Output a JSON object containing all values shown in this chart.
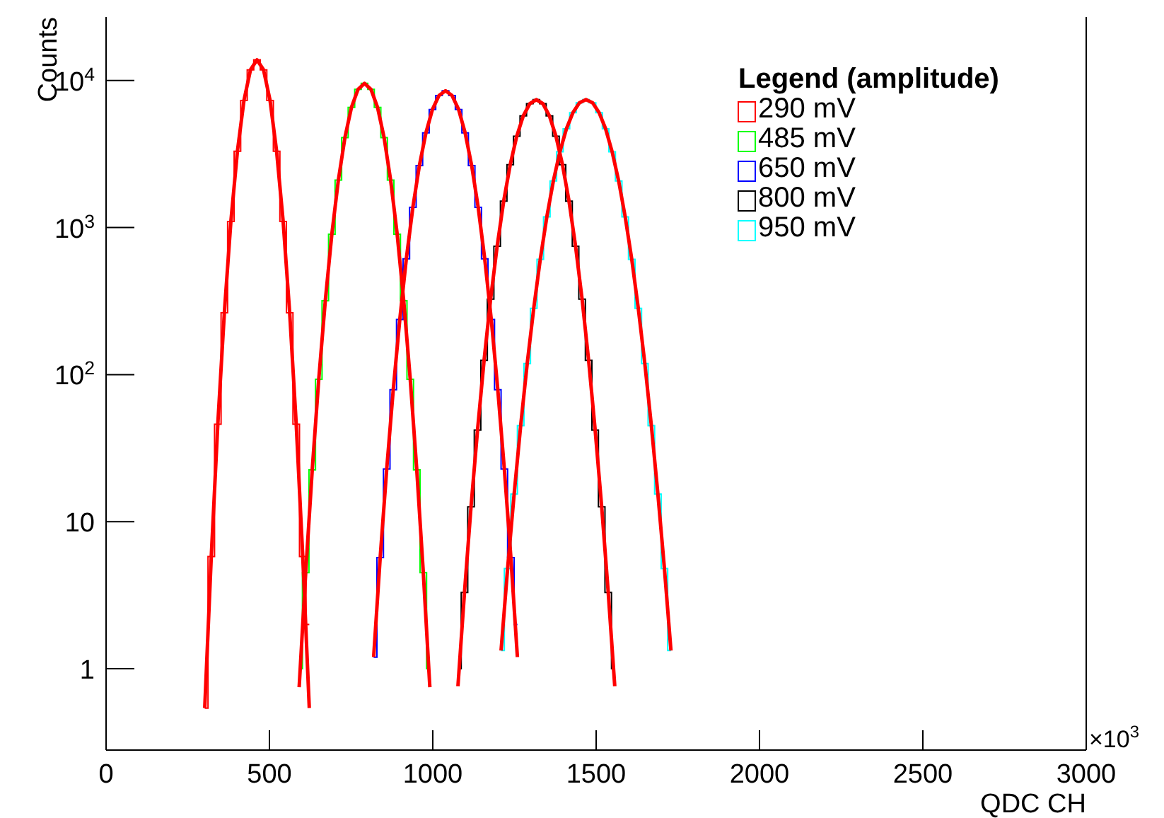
{
  "chart_data": {
    "type": "step",
    "xlabel": "QDC CH",
    "ylabel": "Counts",
    "legend_title": "Legend (amplitude)",
    "legend": "top right",
    "log": "y",
    "xlim": [
      0,
      3000
    ],
    "xticks": [
      0,
      500,
      1000,
      1500,
      2000,
      2500,
      3000
    ],
    "ylim": [
      0.28,
      27000
    ],
    "yticks": [
      1,
      10,
      {
        "value": 100,
        "label": "10$^{2}$"
      },
      {
        "value": 1000,
        "label": "10$^{3}$"
      },
      {
        "value": 10000,
        "label": "10$^{4}$"
      }
    ],
    "annotations": [
      "×10$^{3}$"
    ],
    "series": [
      {
        "name": "290 mV",
        "color": "#ff0000",
        "x": [
          302,
          322,
          342,
          362,
          382,
          402,
          422,
          442,
          462,
          482,
          502,
          522,
          542,
          562,
          582,
          602,
          622
        ],
        "values": [
          0.54,
          5.8,
          46,
          263,
          1100,
          3300,
          7300,
          11800,
          13800,
          11800,
          7300,
          3300,
          1100,
          263,
          46,
          5.8,
          2
        ]
      },
      {
        "name": "485 mV",
        "color": "#00ff00",
        "x": [
          591,
          611,
          631,
          651,
          671,
          691,
          711,
          731,
          751,
          771,
          791,
          811,
          831,
          851,
          871,
          891,
          911,
          931,
          951,
          971,
          991
        ],
        "values": [
          1,
          4.5,
          22.5,
          93,
          318,
          900,
          2100,
          4080,
          6550,
          8690,
          9550,
          8690,
          6550,
          4080,
          2100,
          900,
          318,
          93,
          22.5,
          4.5,
          1
        ]
      },
      {
        "name": "650 mV",
        "color": "#0000ff",
        "x": [
          819,
          839,
          859,
          879,
          899,
          919,
          939,
          959,
          979,
          999,
          1019,
          1039,
          1059,
          1079,
          1099,
          1119,
          1139,
          1159,
          1179,
          1199,
          1219,
          1239,
          1259
        ],
        "values": [
          1.2,
          5.7,
          22.8,
          79,
          237,
          612,
          1370,
          2640,
          4400,
          6350,
          7900,
          8500,
          7900,
          6350,
          4400,
          2640,
          1370,
          612,
          237,
          79,
          22.8,
          5.7,
          2
        ]
      },
      {
        "name": "800 mV",
        "color": "#000000",
        "x": [
          1077,
          1097,
          1117,
          1137,
          1157,
          1177,
          1197,
          1217,
          1237,
          1257,
          1277,
          1297,
          1317,
          1337,
          1357,
          1377,
          1397,
          1417,
          1437,
          1457,
          1477,
          1497,
          1517,
          1537,
          1557
        ],
        "values": [
          1,
          3.3,
          12.6,
          42,
          125,
          326,
          746,
          1510,
          2670,
          4180,
          5740,
          6950,
          7400,
          6950,
          5740,
          4180,
          2670,
          1510,
          746,
          326,
          125,
          42,
          12.6,
          3.3,
          1
        ]
      },
      {
        "name": "950 mV",
        "color": "#00ffff",
        "x": [
          1209,
          1229,
          1249,
          1269,
          1289,
          1309,
          1329,
          1349,
          1369,
          1389,
          1409,
          1429,
          1449,
          1469,
          1489,
          1509,
          1529,
          1549,
          1569,
          1589,
          1609,
          1629,
          1649,
          1669,
          1689,
          1709,
          1729
        ],
        "values": [
          1.33,
          4.8,
          15.4,
          45,
          119,
          282,
          608,
          1180,
          2070,
          3270,
          4690,
          6040,
          7050,
          7400,
          7050,
          6040,
          4690,
          3270,
          2070,
          1180,
          608,
          282,
          119,
          45,
          15.4,
          4.8,
          1.33
        ]
      },
      {
        "type": "line",
        "color": "#ff0000",
        "x": [
          302,
          322,
          342,
          362,
          382,
          402,
          422,
          442,
          462,
          482,
          502,
          522,
          542,
          562,
          582,
          602,
          622
        ],
        "values": [
          0.54,
          5.8,
          46,
          263,
          1100,
          3300,
          7300,
          11800,
          13800,
          11800,
          7300,
          3300,
          1100,
          263,
          46,
          5.8,
          0.54
        ]
      },
      {
        "type": "line",
        "color": "#ff0000",
        "x": [
          591,
          611,
          631,
          651,
          671,
          691,
          711,
          731,
          751,
          771,
          791,
          811,
          831,
          851,
          871,
          891,
          911,
          931,
          951,
          971,
          991
        ],
        "values": [
          0.75,
          4.5,
          22.5,
          93,
          318,
          900,
          2100,
          4080,
          6550,
          8690,
          9550,
          8690,
          6550,
          4080,
          2100,
          900,
          318,
          93,
          22.5,
          4.5,
          0.75
        ]
      },
      {
        "type": "line",
        "color": "#ff0000",
        "x": [
          819,
          839,
          859,
          879,
          899,
          919,
          939,
          959,
          979,
          999,
          1019,
          1039,
          1059,
          1079,
          1099,
          1119,
          1139,
          1159,
          1179,
          1199,
          1219,
          1239,
          1259
        ],
        "values": [
          1.2,
          5.7,
          22.8,
          79,
          237,
          612,
          1370,
          2640,
          4400,
          6350,
          7900,
          8500,
          7900,
          6350,
          4400,
          2640,
          1370,
          612,
          237,
          79,
          22.8,
          5.7,
          1.2
        ]
      },
      {
        "type": "line",
        "color": "#ff0000",
        "x": [
          1077,
          1097,
          1117,
          1137,
          1157,
          1177,
          1197,
          1217,
          1237,
          1257,
          1277,
          1297,
          1317,
          1337,
          1357,
          1377,
          1397,
          1417,
          1437,
          1457,
          1477,
          1497,
          1517,
          1537,
          1557
        ],
        "values": [
          0.76,
          3.3,
          12.6,
          42,
          125,
          326,
          746,
          1510,
          2670,
          4180,
          5740,
          6950,
          7400,
          6950,
          5740,
          4180,
          2670,
          1510,
          746,
          326,
          125,
          42,
          12.6,
          3.3,
          0.76
        ]
      },
      {
        "type": "line",
        "color": "#ff0000",
        "x": [
          1209,
          1229,
          1249,
          1269,
          1289,
          1309,
          1329,
          1349,
          1369,
          1389,
          1409,
          1429,
          1449,
          1469,
          1489,
          1509,
          1529,
          1549,
          1569,
          1589,
          1609,
          1629,
          1649,
          1669,
          1689,
          1709,
          1729
        ],
        "values": [
          1.33,
          4.8,
          15.4,
          45,
          119,
          282,
          608,
          1180,
          2070,
          3270,
          4690,
          6040,
          7050,
          7400,
          7050,
          6040,
          4690,
          3270,
          2070,
          1180,
          608,
          282,
          119,
          45,
          15.4,
          4.8,
          1.33
        ]
      }
    ]
  }
}
